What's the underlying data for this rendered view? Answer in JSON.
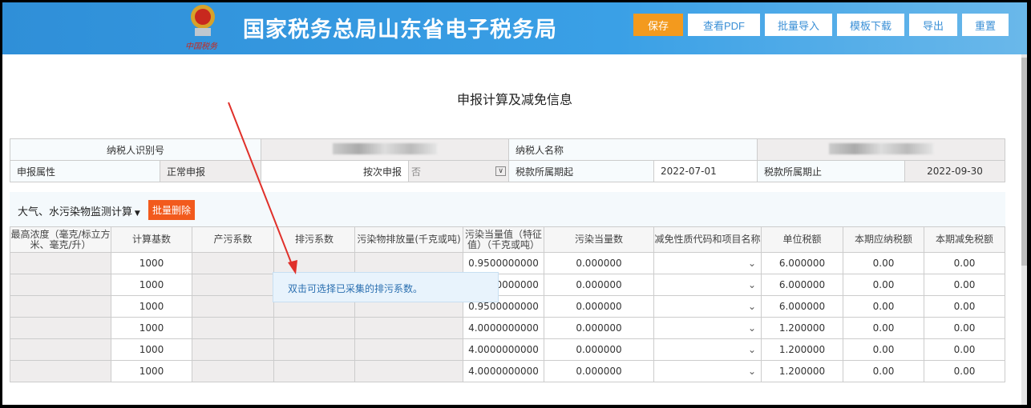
{
  "header": {
    "title": "国家税务总局山东省电子税务局",
    "emblem_text": "中国税务",
    "buttons": [
      {
        "label": "保存",
        "primary": true
      },
      {
        "label": "查看PDF"
      },
      {
        "label": "批量导入"
      },
      {
        "label": "模板下载"
      },
      {
        "label": "导出"
      },
      {
        "label": "重置"
      }
    ]
  },
  "page_title": "申报计算及减免信息",
  "info": {
    "taxpayer_id_label": "纳税人识别号",
    "taxpayer_name_label": "纳税人名称",
    "declare_attr_label": "申报属性",
    "declare_attr_value": "正常申报",
    "per_time_label": "按次申报",
    "per_time_value": "否",
    "period_start_label": "税款所属期起",
    "period_start": "2022-07-01",
    "period_end_label": "税款所属期止",
    "period_end": "2022-09-30"
  },
  "section": {
    "title": "大气、水污染物监测计算",
    "batch_delete": "批量删除"
  },
  "columns": [
    "最高浓度（毫克/标立方米、毫克/升）",
    "计算基数",
    "产污系数",
    "排污系数",
    "污染物排放量(千克或吨)",
    "污染当量值（特征值）（千克或吨）",
    "污染当量数",
    "减免性质代码和项目名称",
    "单位税额",
    "本期应纳税额",
    "本期减免税额"
  ],
  "rows": [
    [
      "",
      "1000",
      "",
      "",
      "",
      "0.9500000000",
      "0.000000",
      "",
      "6.000000",
      "0.00",
      "0.00"
    ],
    [
      "",
      "1000",
      "",
      "",
      "",
      "0.9500000000",
      "0.000000",
      "",
      "6.000000",
      "0.00",
      "0.00"
    ],
    [
      "",
      "1000",
      "",
      "",
      "",
      "0.9500000000",
      "0.000000",
      "",
      "6.000000",
      "0.00",
      "0.00"
    ],
    [
      "",
      "1000",
      "",
      "",
      "",
      "4.0000000000",
      "0.000000",
      "",
      "1.200000",
      "0.00",
      "0.00"
    ],
    [
      "",
      "1000",
      "",
      "",
      "",
      "4.0000000000",
      "0.000000",
      "",
      "1.200000",
      "0.00",
      "0.00"
    ],
    [
      "",
      "1000",
      "",
      "",
      "",
      "4.0000000000",
      "0.000000",
      "",
      "1.200000",
      "0.00",
      "0.00"
    ]
  ],
  "tooltip": "双击可选择已采集的排污系数。"
}
